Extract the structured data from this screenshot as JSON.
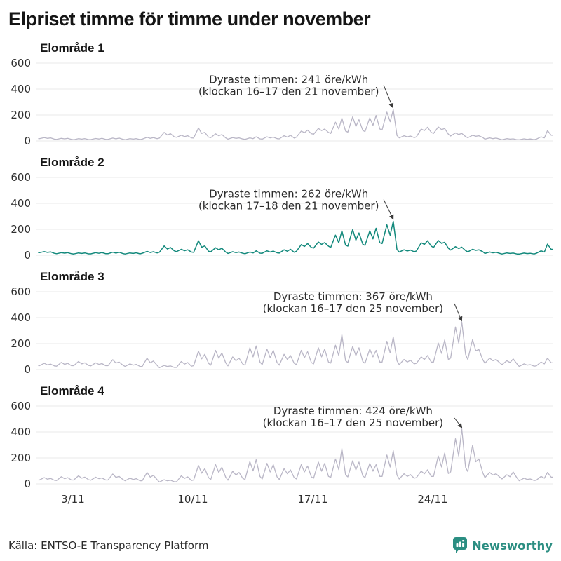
{
  "title": "Elpriset timme för timme under november",
  "axis": {
    "x_labels": [
      "3/11",
      "10/11",
      "17/11",
      "24/11"
    ],
    "x_label_days": [
      2,
      9,
      16,
      23
    ],
    "y_ticks": [
      0,
      200,
      400,
      600
    ],
    "x_range_days": 30
  },
  "colors": {
    "series_gray": "#b9b6c6",
    "series_teal": "#13897c",
    "grid": "#e8e8ea",
    "annotation": "#2b2b2b",
    "brand_teal": "#2b8e82"
  },
  "footer": {
    "source": "Källa: ENTSO-E Transparency Platform",
    "brand": "Newsworthy"
  },
  "chart_data": [
    {
      "type": "line",
      "title": "Elområde 1",
      "unit": "öre/kWh",
      "color": "#b9b6c6",
      "stroke": 1.3,
      "ylim": [
        0,
        620
      ],
      "max_point": {
        "value": 241,
        "date": "21 november",
        "hour": "16–17"
      },
      "annotation": {
        "line1": "Dyraste timmen: 241 öre/kWh",
        "line2": "(klockan 16–17 den 21 november)",
        "text_day": 14.6,
        "text_y1": 445,
        "text_y2": 353,
        "arrow": [
          20.14,
          430,
          20.66,
          262
        ]
      },
      "day_profiles_low_am_mid_pm_late": [
        [
          18,
          26,
          20,
          24,
          14
        ],
        [
          12,
          20,
          16,
          20,
          12
        ],
        [
          10,
          18,
          14,
          18,
          11
        ],
        [
          11,
          19,
          15,
          20,
          12
        ],
        [
          12,
          22,
          16,
          22,
          13
        ],
        [
          10,
          18,
          14,
          18,
          11
        ],
        [
          14,
          28,
          20,
          26,
          18
        ],
        [
          22,
          66,
          46,
          56,
          32
        ],
        [
          28,
          44,
          34,
          40,
          24
        ],
        [
          22,
          100,
          58,
          66,
          30
        ],
        [
          26,
          55,
          40,
          50,
          24
        ],
        [
          14,
          26,
          20,
          24,
          15
        ],
        [
          12,
          24,
          18,
          32,
          16
        ],
        [
          14,
          32,
          24,
          30,
          18
        ],
        [
          16,
          40,
          30,
          44,
          22
        ],
        [
          30,
          76,
          64,
          84,
          56
        ],
        [
          52,
          96,
          80,
          92,
          66
        ],
        [
          58,
          145,
          92,
          176,
          76
        ],
        [
          68,
          186,
          112,
          164,
          82
        ],
        [
          72,
          178,
          120,
          196,
          92
        ],
        [
          86,
          222,
          148,
          241,
          42
        ],
        [
          24,
          40,
          32,
          38,
          26
        ],
        [
          32,
          92,
          80,
          106,
          66
        ],
        [
          58,
          108,
          88,
          96,
          52
        ],
        [
          38,
          62,
          50,
          58,
          34
        ],
        [
          25,
          44,
          36,
          40,
          27
        ],
        [
          14,
          24,
          18,
          22,
          14
        ],
        [
          10,
          18,
          14,
          16,
          10
        ],
        [
          9,
          16,
          12,
          15,
          10
        ],
        [
          14,
          32,
          24,
          80,
          44
        ]
      ]
    },
    {
      "type": "line",
      "title": "Elområde 2",
      "unit": "öre/kWh",
      "color": "#13897c",
      "stroke": 1.5,
      "ylim": [
        0,
        620
      ],
      "max_point": {
        "value": 262,
        "date": "21 november",
        "hour": "17–18"
      },
      "annotation": {
        "line1": "Dyraste timmen: 262 öre/kWh",
        "line2": "(klockan 17–18 den 21 november)",
        "text_day": 14.6,
        "text_y1": 445,
        "text_y2": 353,
        "arrow": [
          20.14,
          430,
          20.68,
          283
        ]
      },
      "day_profiles_low_am_mid_pm_late": [
        [
          20,
          28,
          22,
          26,
          15
        ],
        [
          12,
          20,
          16,
          20,
          12
        ],
        [
          10,
          18,
          14,
          18,
          11
        ],
        [
          11,
          20,
          15,
          21,
          12
        ],
        [
          12,
          23,
          17,
          23,
          13
        ],
        [
          10,
          18,
          14,
          19,
          11
        ],
        [
          15,
          30,
          21,
          27,
          18
        ],
        [
          23,
          72,
          48,
          60,
          34
        ],
        [
          28,
          46,
          35,
          42,
          25
        ],
        [
          22,
          112,
          62,
          72,
          31
        ],
        [
          27,
          58,
          42,
          54,
          25
        ],
        [
          14,
          27,
          20,
          25,
          15
        ],
        [
          12,
          25,
          18,
          34,
          16
        ],
        [
          15,
          34,
          25,
          32,
          19
        ],
        [
          17,
          42,
          31,
          46,
          23
        ],
        [
          31,
          82,
          68,
          90,
          60
        ],
        [
          55,
          102,
          84,
          98,
          70
        ],
        [
          60,
          155,
          96,
          188,
          78
        ],
        [
          70,
          198,
          116,
          172,
          86
        ],
        [
          76,
          188,
          126,
          208,
          96
        ],
        [
          90,
          234,
          154,
          262,
          44
        ],
        [
          25,
          42,
          33,
          40,
          27
        ],
        [
          33,
          96,
          84,
          112,
          70
        ],
        [
          60,
          114,
          92,
          100,
          54
        ],
        [
          40,
          66,
          52,
          62,
          36
        ],
        [
          26,
          46,
          38,
          42,
          28
        ],
        [
          14,
          25,
          19,
          23,
          14
        ],
        [
          10,
          18,
          14,
          17,
          10
        ],
        [
          9,
          17,
          13,
          15,
          10
        ],
        [
          15,
          34,
          25,
          86,
          46
        ]
      ]
    },
    {
      "type": "line",
      "title": "Elområde 3",
      "unit": "öre/kWh",
      "color": "#b9b6c6",
      "stroke": 1.3,
      "ylim": [
        0,
        620
      ],
      "max_point": {
        "value": 367,
        "date": "25 november",
        "hour": "16–17"
      },
      "annotation": {
        "line1": "Dyraste timmen: 367 öre/kWh",
        "line2": "(klockan 16–17 den 25 november)",
        "text_day": 18.35,
        "text_y1": 535,
        "text_y2": 443,
        "arrow": [
          24.27,
          508,
          24.68,
          380
        ]
      },
      "day_profiles_low_am_mid_pm_late": [
        [
          30,
          48,
          36,
          42,
          28
        ],
        [
          26,
          55,
          40,
          48,
          30
        ],
        [
          30,
          62,
          44,
          52,
          32
        ],
        [
          28,
          52,
          40,
          46,
          30
        ],
        [
          30,
          76,
          50,
          58,
          34
        ],
        [
          24,
          44,
          34,
          40,
          24
        ],
        [
          24,
          88,
          52,
          66,
          32
        ],
        [
          14,
          32,
          24,
          28,
          16
        ],
        [
          16,
          62,
          42,
          54,
          26
        ],
        [
          30,
          142,
          82,
          118,
          48
        ],
        [
          34,
          148,
          88,
          128,
          52
        ],
        [
          28,
          98,
          68,
          88,
          42
        ],
        [
          34,
          168,
          98,
          182,
          58
        ],
        [
          38,
          158,
          92,
          148,
          54
        ],
        [
          34,
          118,
          78,
          108,
          48
        ],
        [
          38,
          148,
          92,
          138,
          54
        ],
        [
          44,
          168,
          98,
          158,
          58
        ],
        [
          50,
          188,
          108,
          268,
          68
        ],
        [
          54,
          178,
          108,
          168,
          62
        ],
        [
          48,
          158,
          98,
          148,
          58
        ],
        [
          58,
          218,
          128,
          252,
          68
        ],
        [
          38,
          78,
          58,
          72,
          44
        ],
        [
          48,
          98,
          78,
          108,
          58
        ],
        [
          58,
          205,
          125,
          228,
          78
        ],
        [
          88,
          328,
          205,
          367,
          118
        ],
        [
          78,
          232,
          145,
          155,
          78
        ],
        [
          48,
          88,
          68,
          78,
          52
        ],
        [
          38,
          68,
          54,
          82,
          44
        ],
        [
          24,
          44,
          34,
          38,
          26
        ],
        [
          28,
          58,
          44,
          88,
          52
        ]
      ]
    },
    {
      "type": "line",
      "title": "Elområde 4",
      "unit": "öre/kWh",
      "color": "#b9b6c6",
      "stroke": 1.3,
      "ylim": [
        0,
        620
      ],
      "max_point": {
        "value": 424,
        "date": "25 november",
        "hour": "16–17"
      },
      "annotation": {
        "line1": "Dyraste timmen: 424 öre/kWh",
        "line2": "(klockan 16–17 den 25 november)",
        "text_day": 18.35,
        "text_y1": 535,
        "text_y2": 443,
        "arrow": [
          24.27,
          508,
          24.68,
          438
        ]
      },
      "day_profiles_low_am_mid_pm_late": [
        [
          30,
          48,
          36,
          42,
          28
        ],
        [
          26,
          55,
          40,
          48,
          30
        ],
        [
          30,
          62,
          44,
          52,
          32
        ],
        [
          28,
          52,
          40,
          46,
          30
        ],
        [
          30,
          76,
          50,
          58,
          34
        ],
        [
          24,
          44,
          34,
          40,
          24
        ],
        [
          24,
          88,
          52,
          66,
          32
        ],
        [
          14,
          32,
          24,
          28,
          16
        ],
        [
          16,
          62,
          42,
          54,
          26
        ],
        [
          30,
          142,
          82,
          118,
          48
        ],
        [
          34,
          148,
          88,
          128,
          52
        ],
        [
          28,
          98,
          68,
          88,
          42
        ],
        [
          34,
          172,
          100,
          186,
          58
        ],
        [
          38,
          158,
          92,
          148,
          54
        ],
        [
          34,
          118,
          78,
          108,
          48
        ],
        [
          38,
          148,
          92,
          138,
          54
        ],
        [
          44,
          168,
          98,
          158,
          58
        ],
        [
          50,
          192,
          110,
          272,
          68
        ],
        [
          54,
          178,
          108,
          168,
          62
        ],
        [
          48,
          158,
          98,
          148,
          58
        ],
        [
          58,
          222,
          130,
          256,
          68
        ],
        [
          38,
          78,
          58,
          72,
          44
        ],
        [
          48,
          98,
          78,
          108,
          58
        ],
        [
          58,
          215,
          130,
          238,
          80
        ],
        [
          92,
          348,
          215,
          424,
          128
        ],
        [
          95,
          298,
          170,
          192,
          88
        ],
        [
          48,
          88,
          68,
          78,
          52
        ],
        [
          38,
          70,
          55,
          92,
          46
        ],
        [
          24,
          44,
          34,
          38,
          26
        ],
        [
          28,
          58,
          44,
          88,
          52
        ]
      ]
    }
  ]
}
